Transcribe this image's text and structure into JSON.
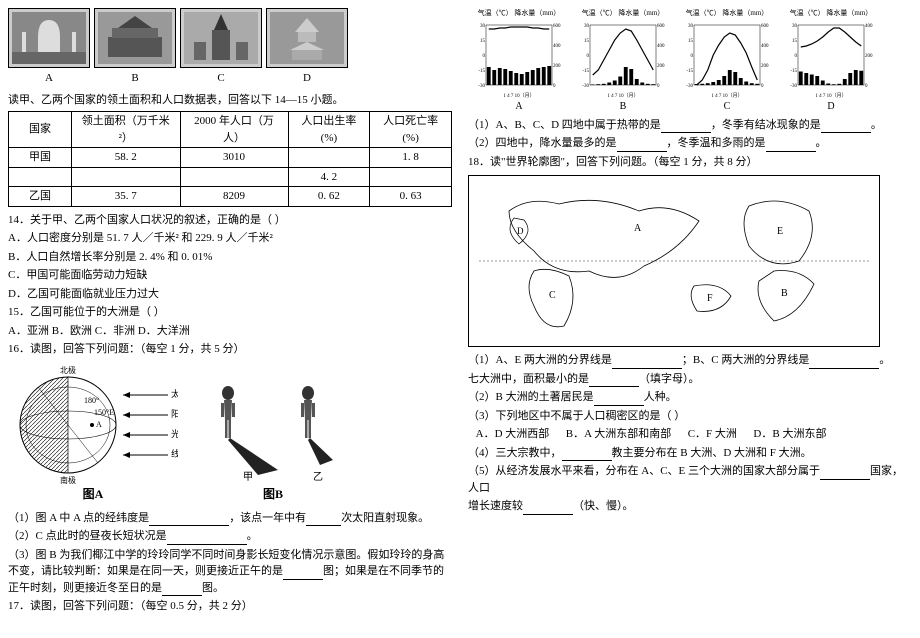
{
  "thumbnails": {
    "labels": [
      "A",
      "B",
      "C",
      "D"
    ]
  },
  "prompt1": "读甲、乙两个国家的领土面积和人口数据表，回答以下 14—15 小题。",
  "table": {
    "headers": [
      "国家",
      "领土面积（万千米²）",
      "2000 年人口（万人）",
      "人口出生率(%)",
      "人口死亡率(%)"
    ],
    "rows": [
      [
        "甲国",
        "58. 2",
        "3010",
        "",
        "1. 8"
      ],
      [
        "",
        "",
        "",
        "4. 2",
        ""
      ],
      [
        "乙国",
        "35. 7",
        "8209",
        "0. 62",
        "0. 63"
      ]
    ]
  },
  "q14": {
    "stem": "14．关于甲、乙两个国家人口状况的叙述，正确的是（  ）",
    "a": "A．人口密度分别是 51. 7 人／千米² 和 229. 9 人／千米²",
    "b": "B．人口自然增长率分别是 2. 4% 和 0. 01%",
    "c": "C．甲国可能面临劳动力短缺",
    "d": "D．乙国可能面临就业压力过大"
  },
  "q15": {
    "stem": "15．乙国可能位于的大洲是（  ）",
    "opts": "A．亚洲      B．欧洲      C．非洲      D．大洋洲"
  },
  "q16": "16．读图，回答下列问题：（每空 1 分，共 5 分）",
  "figA_title": "图A",
  "figB_title": "图B",
  "figA_notes": {
    "np": "北极",
    "sp": "南极",
    "sun": "太\n阳\n光\n线",
    "lon1": "180°",
    "lon2": "150°E"
  },
  "figB_notes": {
    "jia": "甲",
    "yi": "乙"
  },
  "q16_1": "（1）图 A 中 A 点的经纬度是",
  "q16_1b": "，该点一年中有",
  "q16_1c": "次太阳直射现象。",
  "q16_2": "（2）C 点此时的昼夜长短状况是",
  "q16_2b": "。",
  "q16_3": "（3）图 B 为我们椰江中学的玲玲同学不同时间身影长短变化情况示意图。假如玲玲的身高不变，请比较判断：如果是在同一天，则更接近正午的是",
  "q16_3b": "图；如果是在不同季节的正午时刻，则更接近冬至日的是",
  "q16_3c": "图。",
  "q17": "17．读图，回答下列问题：（每空 0.5 分，共 2 分）",
  "climate_axis": "气温（℃） 降水量（mm）",
  "climate_xaxis": "1  4  7  10（月）",
  "climate_labels": [
    "A",
    "B",
    "C",
    "D"
  ],
  "q17_1": "（1）A、B、C、D 四地中属于热带的是",
  "q17_1b": "，冬季有结冰现象的是",
  "q17_1c": "。",
  "q17_2": "（2）四地中，降水量最多的是",
  "q17_2b": "，冬季温和多雨的是",
  "q17_2c": "。",
  "q18": "18．读\"世界轮廓图\"，回答下列问题。（每空 1 分，共 8 分）",
  "map_labels": [
    "A",
    "B",
    "C",
    "D",
    "E",
    "F"
  ],
  "q18_1": "（1）A、E 两大洲的分界线是",
  "q18_1b": "；B、C 两大洲的分界线是",
  "q18_1c": "。",
  "q18_1d": "七大洲中，面积最小的是",
  "q18_1e": "（填字母）。",
  "q18_2": "（2）B 大洲的土著居民是",
  "q18_2b": "人种。",
  "q18_3": "（3）下列地区中不属于人口稠密区的是（  ）",
  "q18_3opts": "   A．D 大洲西部      B．A 大洲东部和南部      C．F 大洲      D．B 大洲东部",
  "q18_4": "（4）三大宗教中，",
  "q18_4b": "教主要分布在 B 大洲、D 大洲和 F 大洲。",
  "q18_5": "（5）从经济发展水平来看，分布在 A、C、E 三个大洲的国家大部分属于",
  "q18_5b": "国家，人口",
  "q18_5c": "增长速度较",
  "q18_5d": "（快、慢）。",
  "chart_cfg": {
    "temp_min": -30,
    "temp_max": 30,
    "temp_step": 15,
    "rain_min": 0,
    "rain_max": 600,
    "rain_step": 200,
    "rain_min_d": 0,
    "rain_max_d": 400,
    "colors": {
      "line": "#000",
      "bar": "#000",
      "grid": "#aaa",
      "bg": "#fff"
    },
    "series": {
      "A": {
        "temp": [
          26,
          26,
          27,
          27,
          28,
          28,
          28,
          28,
          27,
          27,
          26,
          26
        ],
        "rain": [
          180,
          150,
          170,
          160,
          140,
          120,
          110,
          130,
          150,
          170,
          180,
          190
        ]
      },
      "B": {
        "temp": [
          -20,
          -15,
          -5,
          5,
          15,
          22,
          26,
          24,
          15,
          5,
          -5,
          -15
        ],
        "rain": [
          5,
          8,
          12,
          25,
          45,
          85,
          180,
          160,
          60,
          25,
          12,
          8
        ]
      },
      "C": {
        "temp": [
          -30,
          -25,
          -15,
          0,
          10,
          18,
          22,
          20,
          12,
          2,
          -12,
          -25
        ],
        "rain": [
          10,
          12,
          18,
          30,
          50,
          90,
          150,
          130,
          70,
          35,
          18,
          12
        ]
      },
      "D": {
        "temp": [
          8,
          9,
          11,
          14,
          18,
          23,
          27,
          27,
          23,
          18,
          13,
          9
        ],
        "rain": [
          90,
          80,
          70,
          60,
          30,
          10,
          5,
          8,
          40,
          80,
          100,
          95
        ]
      }
    }
  }
}
